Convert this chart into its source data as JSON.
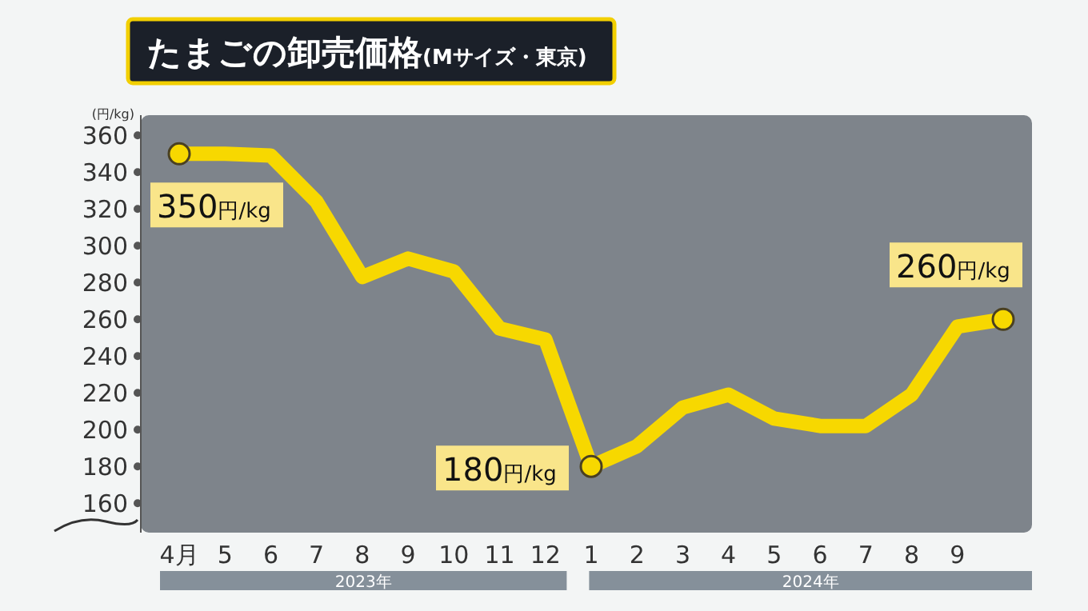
{
  "chart_data": {
    "type": "line",
    "title": "たまごの卸売価格(Mサイズ・東京)",
    "ylabel": "(円/kg)",
    "categories": [
      "4月",
      "5",
      "6",
      "7",
      "8",
      "9",
      "10",
      "11",
      "12",
      "1",
      "2",
      "3",
      "4",
      "5",
      "6",
      "7",
      "8",
      "9",
      null
    ],
    "series": [
      {
        "color": "#f7d800",
        "values": [
          350,
          350,
          349,
          324,
          283,
          293,
          286,
          255,
          249,
          180,
          191,
          212,
          219,
          206,
          202,
          202,
          219,
          256,
          260
        ],
        "value_labels": [
          "350円/kg",
          null,
          null,
          null,
          null,
          null,
          null,
          null,
          null,
          "180円/kg",
          null,
          null,
          null,
          null,
          null,
          null,
          null,
          null,
          "260円/kg"
        ]
      }
    ],
    "annotations": [
      "2023年",
      "2024年"
    ],
    "ylim": [
      144,
      371
    ],
    "yticks": [
      160,
      180,
      200,
      220,
      240,
      260,
      280,
      300,
      320,
      340,
      360
    ],
    "grid": false
  }
}
